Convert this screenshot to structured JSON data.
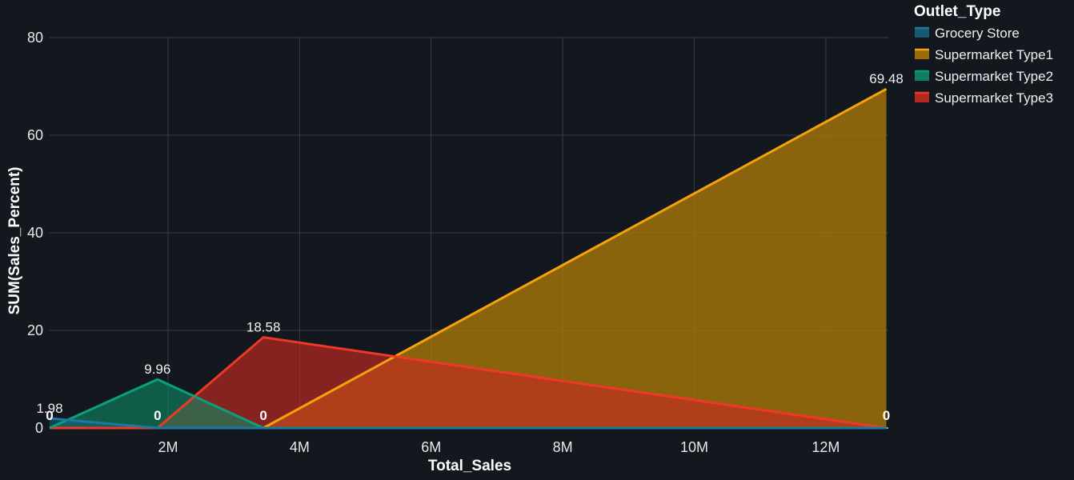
{
  "chart_data": {
    "type": "area",
    "xlabel": "Total_Sales",
    "ylabel": "SUM(Sales_Percent)",
    "xlim": [
      200000,
      12950000
    ],
    "ylim": [
      0,
      80
    ],
    "x_ticks": [
      {
        "value": 2000000,
        "label": "2M"
      },
      {
        "value": 4000000,
        "label": "4M"
      },
      {
        "value": 6000000,
        "label": "6M"
      },
      {
        "value": 8000000,
        "label": "8M"
      },
      {
        "value": 10000000,
        "label": "10M"
      },
      {
        "value": 12000000,
        "label": "12M"
      }
    ],
    "y_ticks": [
      {
        "value": 0,
        "label": "0"
      },
      {
        "value": 20,
        "label": "20"
      },
      {
        "value": 40,
        "label": "40"
      },
      {
        "value": 60,
        "label": "60"
      },
      {
        "value": 80,
        "label": "80"
      }
    ],
    "grid": true,
    "legend": {
      "title": "Outlet_Type",
      "position": "top-right"
    },
    "x": [
      200000,
      1840000,
      3450000,
      12920000
    ],
    "series": [
      {
        "name": "Grocery Store",
        "values": [
          1.98,
          0,
          0,
          0
        ],
        "color": "#1a7aa0",
        "fill": "#1a5f7a",
        "fill_opacity": 0.6
      },
      {
        "name": "Supermarket Type1",
        "values": [
          0,
          0,
          0,
          69.48
        ],
        "color": "#f5a20f",
        "fill": "#a87808",
        "fill_opacity": 0.8
      },
      {
        "name": "Supermarket Type2",
        "values": [
          0,
          9.96,
          0,
          0
        ],
        "color": "#0aa07a",
        "fill": "#0e8a64",
        "fill_opacity": 0.6
      },
      {
        "name": "Supermarket Type3",
        "values": [
          0,
          0,
          18.58,
          0
        ],
        "color": "#f03828",
        "fill": "#c42a22",
        "fill_opacity": 0.65
      }
    ],
    "data_labels": [
      {
        "x": 200000,
        "y": 1.98,
        "text": "1.98",
        "kind": "val"
      },
      {
        "x": 200000,
        "y": 0,
        "text": "0",
        "kind": "zero"
      },
      {
        "x": 1840000,
        "y": 9.96,
        "text": "9.96",
        "kind": "val"
      },
      {
        "x": 1840000,
        "y": 0,
        "text": "0",
        "kind": "zero"
      },
      {
        "x": 3450000,
        "y": 18.58,
        "text": "18.58",
        "kind": "val"
      },
      {
        "x": 3450000,
        "y": 0,
        "text": "0",
        "kind": "zero"
      },
      {
        "x": 12920000,
        "y": 69.48,
        "text": "69.48",
        "kind": "val"
      },
      {
        "x": 12920000,
        "y": 0,
        "text": "0",
        "kind": "zero"
      }
    ]
  }
}
